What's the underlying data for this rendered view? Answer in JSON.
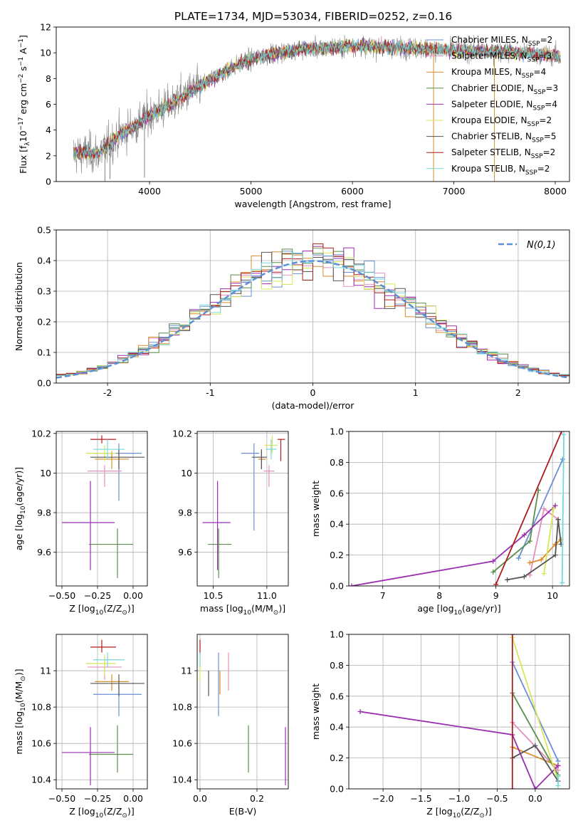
{
  "figure": {
    "title": "PLATE=1734, MJD=53034, FIBERID=0252, z=0.16"
  },
  "colors": {
    "Chabrier MILES": "#6b8fd6",
    "Salpeter MILES": "#e58fc0",
    "Kroupa MILES": "#d98c2b",
    "Chabrier ELODIE": "#5a8f4e",
    "Salpeter ELODIE": "#9a2fb0",
    "Kroupa ELODIE": "#d9e65a",
    "Chabrier STELIB": "#555555",
    "Salpeter STELIB": "#b01c1c",
    "Kroupa STELIB": "#76d7db",
    "data": "#808080",
    "normal": "#5b8fd6"
  },
  "chart_data": [
    {
      "id": "spectrum",
      "type": "line",
      "title": "PLATE=1734, MJD=53034, FIBERID=0252, z=0.16",
      "xlabel": "wavelength [Angstrom, rest frame]",
      "ylabel": "Flux [f_λ 10^-17 erg cm^-2 s^-1 A^-1]",
      "xlim": [
        3080,
        8140
      ],
      "ylim": [
        0,
        12
      ],
      "xticks": [
        4000,
        5000,
        6000,
        7000,
        8000
      ],
      "yticks": [
        0,
        2,
        4,
        6,
        8,
        10,
        12
      ],
      "legend_position": "right",
      "continuum_knots": {
        "x": [
          3250,
          3500,
          3700,
          3900,
          4000,
          4200,
          4400,
          4600,
          4800,
          5000,
          5200,
          5500,
          6000,
          6500,
          7000,
          7500,
          8000,
          8050
        ],
        "y": [
          2.2,
          2.2,
          3.6,
          4.6,
          5.2,
          5.9,
          7.0,
          7.9,
          8.8,
          9.5,
          9.9,
          10.3,
          10.5,
          10.4,
          10.2,
          10.1,
          9.8,
          9.7
        ]
      },
      "series": [
        {
          "name": "Chabrier MILES, N_SSP=2",
          "key": "Chabrier MILES"
        },
        {
          "name": "Salpeter MILES, N_SSP=3",
          "key": "Salpeter MILES"
        },
        {
          "name": "Kroupa MILES, N_SSP=4",
          "key": "Kroupa MILES"
        },
        {
          "name": "Chabrier ELODIE, N_SSP=3",
          "key": "Chabrier ELODIE"
        },
        {
          "name": "Salpeter ELODIE, N_SSP=4",
          "key": "Salpeter ELODIE"
        },
        {
          "name": "Kroupa ELODIE, N_SSP=2",
          "key": "Kroupa ELODIE"
        },
        {
          "name": "Chabrier STELIB, N_SSP=5",
          "key": "Chabrier STELIB"
        },
        {
          "name": "Salpeter STELIB, N_SSP=2",
          "key": "Salpeter STELIB"
        },
        {
          "name": "Kroupa STELIB, N_SSP=2",
          "key": "Kroupa STELIB"
        }
      ]
    },
    {
      "id": "residuals",
      "type": "line",
      "xlabel": "(data-model)/error",
      "ylabel": "Normed distribution",
      "xlim": [
        -2.5,
        2.5
      ],
      "ylim": [
        0,
        0.5
      ],
      "xticks": [
        -2,
        -1,
        0,
        1,
        2
      ],
      "yticks": [
        0.0,
        0.1,
        0.2,
        0.3,
        0.4,
        0.5
      ],
      "bin_width": 0.1,
      "grid": true,
      "legend_position": "top-right",
      "normal_label": "N(0,1)"
    },
    {
      "id": "age-vs-Z",
      "type": "scatter",
      "xlabel": "Z [log10(Z/Z_sun)]",
      "ylabel": "age [log10(age/yr)]",
      "xlim": [
        -0.54,
        0.1
      ],
      "ylim": [
        9.43,
        10.21
      ],
      "xticks": [
        -0.5,
        -0.25,
        0.0
      ],
      "xtick_labels": [
        "−0.50",
        "−0.25",
        "0.00"
      ],
      "yticks": [
        9.6,
        9.8,
        10.0,
        10.2
      ],
      "grid": true,
      "points": [
        {
          "key": "Chabrier MILES",
          "x": -0.1,
          "xerr": [
            0.18,
            0.16
          ],
          "y": 10.1,
          "yerr": [
            0.24,
            0.05
          ]
        },
        {
          "key": "Salpeter MILES",
          "x": -0.2,
          "xerr": [
            0.12,
            0.12
          ],
          "y": 10.01,
          "yerr": [
            0.08,
            0.03
          ]
        },
        {
          "key": "Kroupa MILES",
          "x": -0.15,
          "xerr": [
            0.12,
            0.12
          ],
          "y": 10.07,
          "yerr": [
            0.05,
            0.04
          ]
        },
        {
          "key": "Chabrier ELODIE",
          "x": -0.11,
          "xerr": [
            0.2,
            0.11
          ],
          "y": 9.64,
          "yerr": [
            0.17,
            0.08
          ]
        },
        {
          "key": "Salpeter ELODIE",
          "x": -0.3,
          "xerr": [
            0.2,
            0.17
          ],
          "y": 9.75,
          "yerr": [
            0.24,
            0.21
          ]
        },
        {
          "key": "Kroupa ELODIE",
          "x": -0.2,
          "xerr": [
            0.13,
            0.08
          ],
          "y": 10.1,
          "yerr": [
            0.04,
            0.04
          ]
        },
        {
          "key": "Chabrier STELIB",
          "x": -0.1,
          "xerr": [
            0.2,
            0.18
          ],
          "y": 10.08,
          "yerr": [
            0.06,
            0.04
          ]
        },
        {
          "key": "Salpeter STELIB",
          "x": -0.22,
          "xerr": [
            0.08,
            0.1
          ],
          "y": 10.17,
          "yerr": [
            0.02,
            0.02
          ]
        },
        {
          "key": "Kroupa STELIB",
          "x": -0.18,
          "xerr": [
            0.1,
            0.12
          ],
          "y": 10.12,
          "yerr": [
            0.05,
            0.05
          ]
        }
      ]
    },
    {
      "id": "age-vs-mass",
      "type": "scatter",
      "xlabel": "mass [log10(M/M_sun)]",
      "xlim": [
        10.35,
        11.2
      ],
      "ylim": [
        9.43,
        10.21
      ],
      "xticks": [
        10.5,
        11.0
      ],
      "xtick_labels": [
        "10.5",
        "11.0"
      ],
      "yticks": [
        9.6,
        9.8,
        10.0,
        10.2
      ],
      "grid": true,
      "points": [
        {
          "key": "Chabrier MILES",
          "x": 10.88,
          "xerr": [
            0.12,
            0.05
          ],
          "y": 10.1,
          "yerr": [
            0.39,
            0.05
          ]
        },
        {
          "key": "Salpeter MILES",
          "x": 11.02,
          "xerr": [
            0.05,
            0.05
          ],
          "y": 10.01,
          "yerr": [
            0.08,
            0.03
          ]
        },
        {
          "key": "Kroupa MILES",
          "x": 10.95,
          "xerr": [
            0.03,
            0.04
          ],
          "y": 10.07,
          "yerr": [
            0.05,
            0.04
          ]
        },
        {
          "key": "Chabrier ELODIE",
          "x": 10.55,
          "xerr": [
            0.1,
            0.12
          ],
          "y": 9.64,
          "yerr": [
            0.17,
            0.08
          ]
        },
        {
          "key": "Salpeter ELODIE",
          "x": 10.54,
          "xerr": [
            0.14,
            0.12
          ],
          "y": 9.75,
          "yerr": [
            0.24,
            0.21
          ]
        },
        {
          "key": "Kroupa ELODIE",
          "x": 11.05,
          "xerr": [
            0.07,
            0.05
          ],
          "y": 10.14,
          "yerr": [
            0.04,
            0.05
          ]
        },
        {
          "key": "Chabrier STELIB",
          "x": 10.95,
          "xerr": [
            0.09,
            0.05
          ],
          "y": 10.08,
          "yerr": [
            0.06,
            0.04
          ]
        },
        {
          "key": "Salpeter STELIB",
          "x": 11.13,
          "xerr": [
            0.03,
            0.04
          ],
          "y": 10.17,
          "yerr": [
            0.11,
            0.0
          ]
        },
        {
          "key": "Kroupa STELIB",
          "x": 11.04,
          "xerr": [
            0.05,
            0.05
          ],
          "y": 10.12,
          "yerr": [
            0.05,
            0.05
          ]
        }
      ]
    },
    {
      "id": "weight-vs-age",
      "type": "line",
      "xlabel": "age [log10(age/yr)]",
      "ylabel": "mass weight",
      "xlim": [
        6.4,
        10.3
      ],
      "ylim": [
        0.0,
        1.0
      ],
      "xticks": [
        7,
        8,
        9,
        10
      ],
      "yticks": [
        0.0,
        0.2,
        0.4,
        0.6,
        0.8,
        1.0
      ],
      "grid": true,
      "series": [
        {
          "key": "Chabrier MILES",
          "points": [
            [
              9.4,
              0.18
            ],
            [
              10.18,
              0.82
            ]
          ]
        },
        {
          "key": "Salpeter MILES",
          "points": [
            [
              9.6,
              0.07
            ],
            [
              9.85,
              0.5
            ],
            [
              10.1,
              0.43
            ]
          ]
        },
        {
          "key": "Kroupa MILES",
          "points": [
            [
              9.6,
              0.15
            ],
            [
              9.8,
              0.17
            ],
            [
              10.05,
              0.27
            ],
            [
              10.15,
              0.3
            ]
          ]
        },
        {
          "key": "Chabrier ELODIE",
          "points": [
            [
              8.95,
              0.09
            ],
            [
              9.6,
              0.29
            ],
            [
              9.75,
              0.62
            ]
          ]
        },
        {
          "key": "Salpeter ELODIE",
          "points": [
            [
              6.45,
              0.0
            ],
            [
              8.95,
              0.16
            ],
            [
              9.5,
              0.33
            ],
            [
              10.05,
              0.52
            ]
          ]
        },
        {
          "key": "Kroupa ELODIE",
          "points": [
            [
              9.85,
              0.08
            ],
            [
              10.02,
              0.5
            ]
          ]
        },
        {
          "key": "Chabrier STELIB",
          "points": [
            [
              9.2,
              0.04
            ],
            [
              9.5,
              0.06
            ],
            [
              10.05,
              0.2
            ],
            [
              10.1,
              0.43
            ],
            [
              10.15,
              0.27
            ]
          ]
        },
        {
          "key": "Salpeter STELIB",
          "points": [
            [
              9.0,
              0.01
            ],
            [
              10.16,
              1.0
            ]
          ]
        },
        {
          "key": "Kroupa STELIB",
          "points": [
            [
              10.17,
              0.02
            ],
            [
              10.2,
              0.98
            ]
          ]
        }
      ]
    },
    {
      "id": "mass-vs-Z",
      "type": "scatter",
      "xlabel": "Z [log10(Z/Z_sun)]",
      "ylabel": "mass [log10(M/M_sun)]",
      "xlim": [
        -0.54,
        0.1
      ],
      "ylim": [
        10.35,
        11.2
      ],
      "xticks": [
        -0.5,
        -0.25,
        0.0
      ],
      "xtick_labels": [
        "−0.50",
        "−0.25",
        "0.00"
      ],
      "yticks": [
        10.4,
        10.6,
        10.8,
        11.0
      ],
      "grid": true,
      "points": [
        {
          "key": "Chabrier MILES",
          "x": -0.1,
          "xerr": [
            0.18,
            0.16
          ],
          "y": 10.87,
          "yerr": [
            0.12,
            0.05
          ]
        },
        {
          "key": "Salpeter MILES",
          "x": -0.2,
          "xerr": [
            0.12,
            0.12
          ],
          "y": 11.02,
          "yerr": [
            0.07,
            0.05
          ]
        },
        {
          "key": "Kroupa MILES",
          "x": -0.15,
          "xerr": [
            0.12,
            0.12
          ],
          "y": 10.94,
          "yerr": [
            0.05,
            0.04
          ]
        },
        {
          "key": "Chabrier ELODIE",
          "x": -0.11,
          "xerr": [
            0.2,
            0.11
          ],
          "y": 10.54,
          "yerr": [
            0.1,
            0.16
          ]
        },
        {
          "key": "Salpeter ELODIE",
          "x": -0.3,
          "xerr": [
            0.2,
            0.17
          ],
          "y": 10.55,
          "yerr": [
            0.18,
            0.14
          ]
        },
        {
          "key": "Kroupa ELODIE",
          "x": -0.2,
          "xerr": [
            0.13,
            0.08
          ],
          "y": 11.04,
          "yerr": [
            0.07,
            0.05
          ]
        },
        {
          "key": "Chabrier STELIB",
          "x": -0.1,
          "xerr": [
            0.2,
            0.18
          ],
          "y": 10.93,
          "yerr": [
            0.07,
            0.05
          ]
        },
        {
          "key": "Salpeter STELIB",
          "x": -0.22,
          "xerr": [
            0.08,
            0.1
          ],
          "y": 11.13,
          "yerr": [
            0.03,
            0.04
          ]
        },
        {
          "key": "Kroupa STELIB",
          "x": -0.18,
          "xerr": [
            0.1,
            0.12
          ],
          "y": 11.06,
          "yerr": [
            0.04,
            0.04
          ]
        }
      ]
    },
    {
      "id": "mass-vs-ebv",
      "type": "scatter",
      "xlabel": "E(B-V)",
      "xlim": [
        -0.01,
        0.31
      ],
      "ylim": [
        10.35,
        11.2
      ],
      "xticks": [
        0.0,
        0.2
      ],
      "xtick_labels": [
        "0.0",
        "0.2"
      ],
      "yticks": [
        10.4,
        10.6,
        10.8,
        11.0
      ],
      "grid": true,
      "points": [
        {
          "key": "Chabrier MILES",
          "x": 0.065,
          "xerr": [
            0,
            0
          ],
          "y": 10.93,
          "yerr": [
            0.18,
            0.17
          ]
        },
        {
          "key": "Salpeter MILES",
          "x": 0.1,
          "xerr": [
            0,
            0
          ],
          "y": 10.98,
          "yerr": [
            0.09,
            0.12
          ]
        },
        {
          "key": "Kroupa MILES",
          "x": 0.07,
          "xerr": [
            0,
            0
          ],
          "y": 10.95,
          "yerr": [
            0.08,
            0.05
          ]
        },
        {
          "key": "Chabrier ELODIE",
          "x": 0.17,
          "xerr": [
            0,
            0
          ],
          "y": 10.58,
          "yerr": [
            0.14,
            0.12
          ]
        },
        {
          "key": "Salpeter ELODIE",
          "x": 0.3,
          "xerr": [
            0,
            0
          ],
          "y": 10.53,
          "yerr": [
            0.16,
            0.16
          ]
        },
        {
          "key": "Kroupa ELODIE",
          "x": 0.0,
          "xerr": [
            0,
            0
          ],
          "y": 11.02,
          "yerr": [
            0.08,
            0.06
          ]
        },
        {
          "key": "Chabrier STELIB",
          "x": 0.03,
          "xerr": [
            0,
            0
          ],
          "y": 10.93,
          "yerr": [
            0.07,
            0.07
          ]
        },
        {
          "key": "Salpeter STELIB",
          "x": 0.0,
          "xerr": [
            0,
            0
          ],
          "y": 11.13,
          "yerr": [
            0.04,
            0.04
          ]
        },
        {
          "key": "Kroupa STELIB",
          "x": 0.0,
          "xerr": [
            0,
            0
          ],
          "y": 11.06,
          "yerr": [
            0.04,
            0.04
          ]
        }
      ]
    },
    {
      "id": "weight-vs-Z",
      "type": "line",
      "xlabel": "Z [log10(Z/Z_sun)]",
      "ylabel": "mass weight",
      "xlim": [
        -2.45,
        0.45
      ],
      "ylim": [
        0.0,
        1.0
      ],
      "xticks": [
        -2.0,
        -1.5,
        -1.0,
        -0.5,
        0.0
      ],
      "xtick_labels": [
        "−2.0",
        "−1.5",
        "−1.0",
        "−0.5",
        "0.0"
      ],
      "yticks": [
        0.0,
        0.2,
        0.4,
        0.6,
        0.8,
        1.0
      ],
      "grid": true,
      "series": [
        {
          "key": "Chabrier MILES",
          "points": [
            [
              -0.3,
              0.82
            ],
            [
              0.3,
              0.18
            ]
          ]
        },
        {
          "key": "Salpeter MILES",
          "points": [
            [
              -0.3,
              0.43
            ],
            [
              0.3,
              0.12
            ]
          ]
        },
        {
          "key": "Kroupa MILES",
          "points": [
            [
              -0.3,
              0.27
            ],
            [
              0.3,
              0.15
            ]
          ]
        },
        {
          "key": "Chabrier ELODIE",
          "points": [
            [
              -0.3,
              0.62
            ],
            [
              0.3,
              0.09
            ]
          ]
        },
        {
          "key": "Salpeter ELODIE",
          "points": [
            [
              -2.3,
              0.5
            ],
            [
              -0.3,
              0.35
            ],
            [
              0.0,
              0.0
            ],
            [
              0.3,
              0.15
            ]
          ]
        },
        {
          "key": "Kroupa ELODIE",
          "points": [
            [
              -0.3,
              0.98
            ],
            [
              0.3,
              0.05
            ]
          ]
        },
        {
          "key": "Chabrier STELIB",
          "points": [
            [
              -0.3,
              0.2
            ],
            [
              0.0,
              0.28
            ],
            [
              0.3,
              0.05
            ]
          ]
        },
        {
          "key": "Salpeter STELIB",
          "points": [
            [
              -0.3,
              0.0
            ],
            [
              -0.3,
              1.0
            ]
          ]
        },
        {
          "key": "Kroupa STELIB",
          "points": [
            [
              0.3,
              0.02
            ],
            [
              0.3,
              0.08
            ]
          ]
        }
      ]
    }
  ]
}
